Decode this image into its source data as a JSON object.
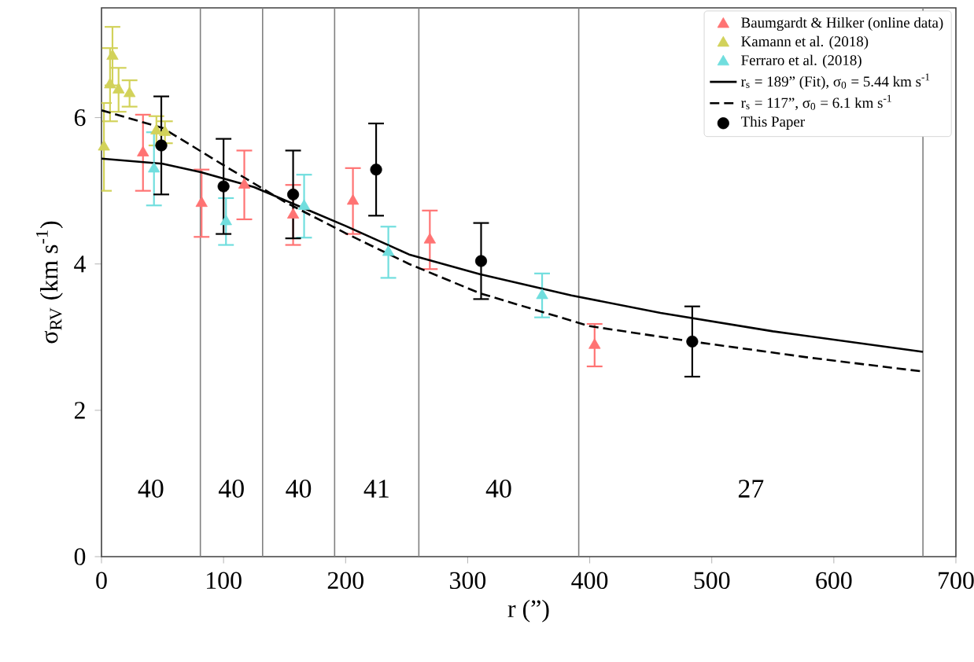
{
  "chart_data": {
    "type": "scatter",
    "xlabel": "r (”)",
    "ylabel": "σ$_{RV}$ (km s$^{-1}$)",
    "xlim": [
      0,
      700
    ],
    "ylim": [
      0,
      7.5
    ],
    "xticks": [
      0,
      100,
      200,
      300,
      400,
      500,
      600,
      700
    ],
    "yticks": [
      0,
      2,
      4,
      6
    ],
    "grid": false,
    "legend": "top right",
    "series": [
      {
        "name": "Baumgardt & Hilker (online data)",
        "marker": "triangle",
        "color": "#ff7373",
        "x": [
          34,
          82,
          117,
          157,
          206,
          269,
          404
        ],
        "values": [
          5.52,
          4.83,
          5.08,
          4.67,
          4.86,
          4.33,
          2.89
        ],
        "errors": [
          0.52,
          0.46,
          0.47,
          0.41,
          0.45,
          0.4,
          0.29
        ]
      },
      {
        "name": "Kamann et al. (2018)",
        "marker": "triangle",
        "color": "#d2d25a",
        "x": [
          2,
          7,
          9,
          14,
          23,
          45,
          52
        ],
        "values": [
          5.6,
          6.45,
          6.84,
          6.38,
          6.33,
          5.82,
          5.8
        ],
        "errors": [
          0.6,
          0.5,
          0.4,
          0.3,
          0.18,
          0.2,
          0.15
        ]
      },
      {
        "name": "Ferraro et al. (2018)",
        "marker": "triangle",
        "color": "#70dede",
        "x": [
          43,
          102,
          166,
          235,
          361
        ],
        "values": [
          5.3,
          4.58,
          4.79,
          4.16,
          3.57
        ],
        "errors": [
          0.5,
          0.32,
          0.43,
          0.35,
          0.3
        ]
      },
      {
        "name": "r$_{s}$ = 189” (Fit), σ$_{0}$ = 5.44 km s$^{-1}$",
        "type": "line",
        "marker": "none",
        "line_style": "solid",
        "color": "#000000",
        "x": [
          0,
          50,
          80,
          125,
          166,
          200,
          252,
          310,
          385,
          458,
          550,
          673
        ],
        "values": [
          5.44,
          5.37,
          5.26,
          5.05,
          4.76,
          4.52,
          4.13,
          3.86,
          3.57,
          3.33,
          3.08,
          2.8
        ]
      },
      {
        "name": "r$_{s}$ = 117”, σ$_{0}$ = 6.1 km s$^{-1}$",
        "type": "line",
        "marker": "none",
        "line_style": "dashed",
        "color": "#000000",
        "x": [
          0,
          50,
          100,
          150,
          200,
          252,
          310,
          400,
          484,
          580,
          673
        ],
        "values": [
          6.1,
          5.86,
          5.35,
          4.85,
          4.42,
          4.0,
          3.6,
          3.15,
          2.94,
          2.72,
          2.53
        ]
      },
      {
        "name": "This Paper",
        "marker": "circle",
        "color": "#000000",
        "x": [
          49,
          100,
          157,
          225,
          311,
          484
        ],
        "values": [
          5.62,
          5.06,
          4.95,
          5.29,
          4.04,
          2.94
        ],
        "errors": [
          0.67,
          0.65,
          0.6,
          0.63,
          0.52,
          0.48
        ]
      }
    ],
    "ref_lines": [
      {
        "axis": "x",
        "value": 81,
        "color": "#808080"
      },
      {
        "axis": "x",
        "value": 132,
        "color": "#808080"
      },
      {
        "axis": "x",
        "value": 191,
        "color": "#808080"
      },
      {
        "axis": "x",
        "value": 260,
        "color": "#808080"
      },
      {
        "axis": "x",
        "value": 391,
        "color": "#808080"
      },
      {
        "axis": "x",
        "value": 673,
        "color": "#808080"
      }
    ],
    "annotations": [
      "40",
      "40",
      "40",
      "41",
      "40",
      "27"
    ]
  }
}
